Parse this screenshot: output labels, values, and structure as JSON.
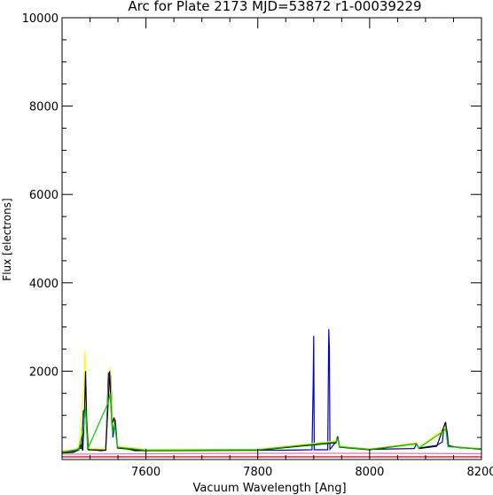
{
  "chart_data": {
    "type": "line",
    "title": "Arc for Plate 2173  MJD=53872  r1-00039229",
    "xlabel": "Vacuum Wavelength [Ang]",
    "ylabel": "Flux [electrons]",
    "xlim": [
      7450,
      8200
    ],
    "ylim": [
      0,
      10000
    ],
    "x_ticks": [
      7600,
      7800,
      8000,
      8200
    ],
    "y_ticks": [
      0,
      2000,
      4000,
      6000,
      8000,
      10000
    ],
    "x_tick_labels": [
      "7600",
      "7800",
      "8000",
      "8200"
    ],
    "y_tick_labels": [
      "2000",
      "4000",
      "6000",
      "8000",
      "10000"
    ],
    "grid": false,
    "series": [
      {
        "color": "#0000cc",
        "points": [
          [
            7450,
            180
          ],
          [
            7470,
            190
          ],
          [
            7480,
            250
          ],
          [
            7485,
            260
          ],
          [
            7488,
            1100
          ],
          [
            7492,
            1150
          ],
          [
            7496,
            230
          ],
          [
            7520,
            200
          ],
          [
            7528,
            210
          ],
          [
            7533,
            1950
          ],
          [
            7537,
            1900
          ],
          [
            7541,
            500
          ],
          [
            7545,
            900
          ],
          [
            7549,
            300
          ],
          [
            7580,
            200
          ],
          [
            7700,
            210
          ],
          [
            7850,
            210
          ],
          [
            7897,
            220
          ],
          [
            7899,
            1700
          ],
          [
            7900,
            2800
          ],
          [
            7901,
            220
          ],
          [
            7925,
            220
          ],
          [
            7927,
            2950
          ],
          [
            7928,
            2500
          ],
          [
            7929,
            230
          ],
          [
            7940,
            400
          ],
          [
            7943,
            520
          ],
          [
            7946,
            300
          ],
          [
            8000,
            230
          ],
          [
            8080,
            250
          ],
          [
            8084,
            370
          ],
          [
            8088,
            260
          ],
          [
            8120,
            320
          ],
          [
            8130,
            400
          ],
          [
            8133,
            750
          ],
          [
            8136,
            800
          ],
          [
            8139,
            600
          ],
          [
            8141,
            320
          ],
          [
            8160,
            270
          ],
          [
            8200,
            240
          ]
        ]
      },
      {
        "color": "#ffff00",
        "points": [
          [
            7450,
            200
          ],
          [
            7470,
            210
          ],
          [
            7480,
            280
          ],
          [
            7488,
            1500
          ],
          [
            7491,
            2450
          ],
          [
            7494,
            1100
          ],
          [
            7497,
            250
          ],
          [
            7528,
            240
          ],
          [
            7533,
            1600
          ],
          [
            7536,
            2100
          ],
          [
            7540,
            800
          ],
          [
            7544,
            900
          ],
          [
            7549,
            300
          ],
          [
            7600,
            230
          ],
          [
            7800,
            230
          ],
          [
            7940,
            420
          ],
          [
            7943,
            500
          ],
          [
            7946,
            300
          ],
          [
            8000,
            240
          ],
          [
            8084,
            380
          ],
          [
            8088,
            270
          ],
          [
            8133,
            700
          ],
          [
            8136,
            780
          ],
          [
            8140,
            300
          ],
          [
            8200,
            250
          ]
        ]
      },
      {
        "color": "#000000",
        "points": [
          [
            7450,
            150
          ],
          [
            7470,
            160
          ],
          [
            7480,
            220
          ],
          [
            7484,
            330
          ],
          [
            7487,
            200
          ],
          [
            7490,
            1000
          ],
          [
            7492,
            2000
          ],
          [
            7494,
            900
          ],
          [
            7497,
            220
          ],
          [
            7528,
            210
          ],
          [
            7533,
            1400
          ],
          [
            7535,
            2000
          ],
          [
            7539,
            800
          ],
          [
            7543,
            950
          ],
          [
            7546,
            700
          ],
          [
            7549,
            260
          ],
          [
            7600,
            200
          ],
          [
            7800,
            210
          ],
          [
            7940,
            380
          ],
          [
            7943,
            520
          ],
          [
            7946,
            280
          ],
          [
            8000,
            220
          ],
          [
            8084,
            360
          ],
          [
            8088,
            250
          ],
          [
            8120,
            300
          ],
          [
            8133,
            750
          ],
          [
            8136,
            850
          ],
          [
            8140,
            300
          ],
          [
            8200,
            230
          ]
        ]
      },
      {
        "color": "#00cc00",
        "points": [
          [
            7450,
            170
          ],
          [
            7480,
            230
          ],
          [
            7488,
            700
          ],
          [
            7492,
            1200
          ],
          [
            7496,
            240
          ],
          [
            7533,
            1300
          ],
          [
            7536,
            1500
          ],
          [
            7540,
            600
          ],
          [
            7544,
            800
          ],
          [
            7549,
            280
          ],
          [
            7600,
            210
          ],
          [
            7800,
            220
          ],
          [
            7940,
            400
          ],
          [
            7943,
            480
          ],
          [
            7946,
            290
          ],
          [
            8000,
            230
          ],
          [
            8084,
            360
          ],
          [
            8088,
            260
          ],
          [
            8133,
            650
          ],
          [
            8136,
            700
          ],
          [
            8140,
            290
          ],
          [
            8200,
            240
          ]
        ]
      },
      {
        "color": "#ff69b4",
        "points": [
          [
            7450,
            120
          ],
          [
            7600,
            130
          ],
          [
            7800,
            140
          ],
          [
            8000,
            140
          ],
          [
            8200,
            130
          ]
        ]
      },
      {
        "color": "#cc0000",
        "points": [
          [
            7450,
            60
          ],
          [
            7600,
            60
          ],
          [
            7800,
            60
          ],
          [
            8000,
            60
          ],
          [
            8200,
            60
          ]
        ]
      }
    ]
  }
}
